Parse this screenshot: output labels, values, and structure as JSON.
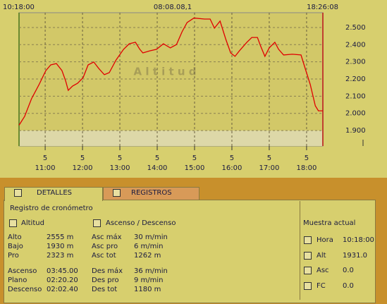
{
  "chart_data": {
    "type": "line",
    "start_label": "10:18:00",
    "center_label": "08:08.08,1",
    "end_label": "18:26:08",
    "watermark": "A l t i t u d",
    "xlim": [
      "10:18:00",
      "18:26:08"
    ],
    "xticks": [
      {
        "value": "11:00",
        "label": "11:00",
        "sublabel": "5"
      },
      {
        "value": "12:00",
        "label": "12:00",
        "sublabel": "5"
      },
      {
        "value": "13:00",
        "label": "13:00",
        "sublabel": "5"
      },
      {
        "value": "14:00",
        "label": "14:00",
        "sublabel": "5"
      },
      {
        "value": "15:00",
        "label": "15:00",
        "sublabel": "5"
      },
      {
        "value": "16:00",
        "label": "16:00",
        "sublabel": "5"
      },
      {
        "value": "17:00",
        "label": "17:00",
        "sublabel": "5"
      },
      {
        "value": "18:00",
        "label": "18:00",
        "sublabel": "5"
      }
    ],
    "ylim": [
      1810,
      2586
    ],
    "yticks": [
      {
        "value": 1900,
        "label": "1.900"
      },
      {
        "value": 2000,
        "label": "2.000"
      },
      {
        "value": 2100,
        "label": "2.100"
      },
      {
        "value": 2200,
        "label": "2.200"
      },
      {
        "value": 2300,
        "label": "2.300"
      },
      {
        "value": 2400,
        "label": "2.400"
      },
      {
        "value": 2500,
        "label": "2.500"
      }
    ],
    "grid": true,
    "x": [
      "10:18",
      "10:27",
      "10:38",
      "10:50",
      "11:01",
      "11:09",
      "11:18",
      "11:27",
      "11:33",
      "11:37",
      "11:44",
      "11:52",
      "12:01",
      "12:09",
      "12:18",
      "12:26",
      "12:35",
      "12:43",
      "12:54",
      "13:06",
      "13:15",
      "13:25",
      "13:32",
      "13:37",
      "13:48",
      "13:59",
      "14:10",
      "14:21",
      "14:31",
      "14:40",
      "14:48",
      "14:59",
      "15:16",
      "15:25",
      "15:32",
      "15:41",
      "15:50",
      "15:58",
      "16:05",
      "16:12",
      "16:24",
      "16:32",
      "16:41",
      "16:46",
      "16:53",
      "17:00",
      "17:09",
      "17:15",
      "17:23",
      "17:37",
      "17:51",
      "17:57",
      "18:06",
      "18:14",
      "18:19",
      "18:26"
    ],
    "series": [
      {
        "name": "Altitud",
        "color": "#e00000",
        "values": [
          1931,
          1982,
          2085,
          2167,
          2249,
          2282,
          2290,
          2249,
          2188,
          2134,
          2159,
          2175,
          2208,
          2282,
          2299,
          2262,
          2225,
          2237,
          2311,
          2373,
          2405,
          2414,
          2373,
          2352,
          2364,
          2373,
          2405,
          2381,
          2401,
          2475,
          2529,
          2555,
          2549,
          2549,
          2496,
          2537,
          2434,
          2352,
          2332,
          2364,
          2414,
          2442,
          2442,
          2393,
          2332,
          2381,
          2414,
          2373,
          2340,
          2344,
          2340,
          2270,
          2167,
          2044,
          2015,
          2015
        ]
      }
    ]
  },
  "panel": {
    "tabs": [
      "DETALLES",
      "REGISTROS"
    ],
    "subtitle": "Registro de cronómetro",
    "altitud": {
      "title": "Altitud",
      "rows": [
        [
          "Alto",
          "2555 m"
        ],
        [
          "Bajo",
          "1930 m"
        ],
        [
          "Pro",
          "2323 m"
        ],
        [
          "Ascenso",
          "03:45.00"
        ],
        [
          "Plano",
          "02:20.20"
        ],
        [
          "Descenso",
          "02:02.40"
        ]
      ]
    },
    "ascenso": {
      "title": "Ascenso / Descenso",
      "rows": [
        [
          "Asc máx",
          "30 m/min"
        ],
        [
          "Asc pro",
          "6 m/min"
        ],
        [
          "Asc tot",
          "1262 m"
        ],
        [
          "Des máx",
          "36 m/min"
        ],
        [
          "Des pro",
          "9 m/min"
        ],
        [
          "Des tot",
          "1180 m"
        ]
      ]
    },
    "muestra": {
      "title": "Muestra actual",
      "rows": [
        [
          "Hora",
          "10:18:00"
        ],
        [
          "Alt",
          "1931.0"
        ],
        [
          "Asc",
          "0.0"
        ],
        [
          "FC",
          "0.0"
        ]
      ]
    }
  }
}
